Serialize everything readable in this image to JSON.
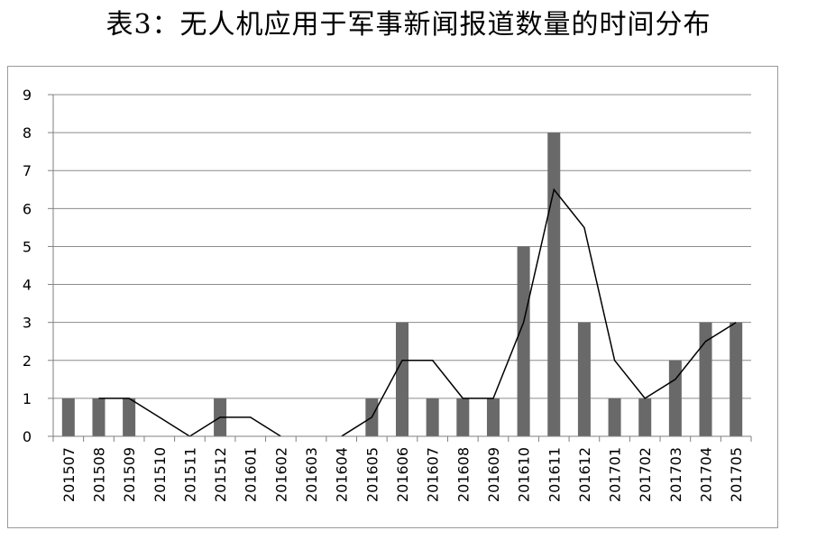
{
  "title": "表3：无人机应用于军事新闻报道数量的时间分布",
  "chart_data": {
    "type": "bar",
    "categories": [
      "201507",
      "201508",
      "201509",
      "201510",
      "201511",
      "201512",
      "201601",
      "201602",
      "201603",
      "201604",
      "201605",
      "201606",
      "201607",
      "201608",
      "201609",
      "201610",
      "201611",
      "201612",
      "201701",
      "201702",
      "201703",
      "201704",
      "201705"
    ],
    "series": [
      {
        "type": "bar",
        "values": [
          1,
          1,
          1,
          0,
          0,
          1,
          0,
          0,
          0,
          0,
          1,
          3,
          1,
          1,
          1,
          5,
          8,
          3,
          1,
          1,
          2,
          3,
          3
        ]
      },
      {
        "type": "line",
        "values": [
          null,
          1,
          1,
          0.5,
          0,
          0.5,
          0.5,
          0,
          null,
          0,
          0.5,
          2,
          2,
          1,
          1,
          3,
          6.5,
          5.5,
          2,
          1,
          1.5,
          2.5,
          3
        ]
      }
    ],
    "ylim": [
      0,
      9
    ],
    "yticks": [
      0,
      1,
      2,
      3,
      4,
      5,
      6,
      7,
      8,
      9
    ],
    "grid": true,
    "colors": {
      "bar": "#696969",
      "line": "#000000",
      "grid": "#8c8c8c"
    }
  }
}
